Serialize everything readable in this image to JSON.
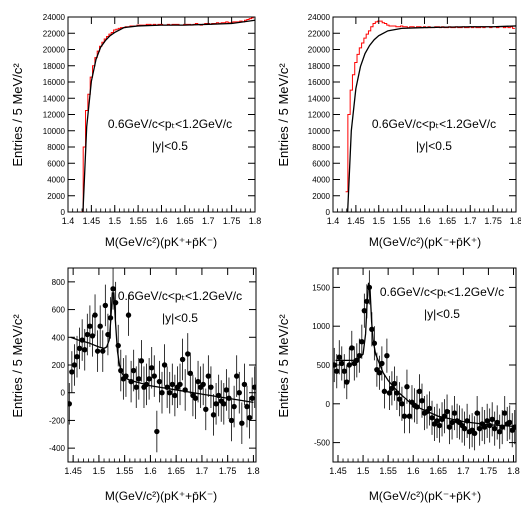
{
  "chart_data": [
    {
      "type": "line",
      "y_axis_label": "Entries / 5 MeV/c²",
      "x_axis_label": "M(GeV/c²)(pK⁺+p̄K⁻)",
      "annotation_line1": "0.6GeV/c<pₜ<1.2GeV/c",
      "annotation_line2": "|y|<0.5",
      "xlim": [
        1.4,
        1.8
      ],
      "ylim": [
        0,
        24000
      ],
      "x_ticks": [
        "1.4",
        "1.45",
        "1.5",
        "1.55",
        "1.6",
        "1.65",
        "1.7",
        "1.75",
        "1.8"
      ],
      "y_ticks": [
        "0",
        "2000",
        "4000",
        "6000",
        "8000",
        "10000",
        "12000",
        "14000",
        "16000",
        "18000",
        "20000",
        "22000",
        "24000"
      ],
      "series": [
        {
          "style": "histogram",
          "color": "#ff0000",
          "x": [
            1.43,
            1.435,
            1.44,
            1.445,
            1.45,
            1.455,
            1.46,
            1.465,
            1.47,
            1.475,
            1.48,
            1.485,
            1.49,
            1.495,
            1.5,
            1.505,
            1.51,
            1.515,
            1.52,
            1.525,
            1.53,
            1.535,
            1.54,
            1.545,
            1.55,
            1.555,
            1.56,
            1.565,
            1.57,
            1.575,
            1.58,
            1.585,
            1.59,
            1.595,
            1.6,
            1.605,
            1.61,
            1.615,
            1.62,
            1.625,
            1.63,
            1.635,
            1.64,
            1.645,
            1.65,
            1.655,
            1.66,
            1.665,
            1.67,
            1.675,
            1.68,
            1.685,
            1.69,
            1.695,
            1.7,
            1.705,
            1.71,
            1.715,
            1.72,
            1.725,
            1.73,
            1.735,
            1.74,
            1.745,
            1.75,
            1.755,
            1.76,
            1.765,
            1.77,
            1.775,
            1.78,
            1.785,
            1.79,
            1.795
          ],
          "y": [
            0,
            8000,
            12500,
            14500,
            16600,
            18000,
            19000,
            19800,
            20400,
            20900,
            21300,
            21600,
            21900,
            22100,
            22400,
            22500,
            22600,
            22700,
            22700,
            22800,
            22800,
            22900,
            22900,
            22900,
            23000,
            23000,
            23000,
            23000,
            23100,
            23100,
            23000,
            23100,
            23000,
            23100,
            23100,
            23000,
            23000,
            23100,
            23000,
            23100,
            23100,
            23100,
            23000,
            23000,
            23100,
            23100,
            23100,
            23000,
            23100,
            23200,
            23100,
            23000,
            23100,
            23200,
            23200,
            23100,
            23200,
            23200,
            23300,
            23200,
            23300,
            23300,
            23400,
            23300,
            23300,
            23400,
            23400,
            23400,
            23500,
            23400,
            23600,
            23700,
            23800,
            23900
          ]
        },
        {
          "style": "curve",
          "color": "#000000",
          "x": [
            1.432,
            1.44,
            1.45,
            1.46,
            1.47,
            1.48,
            1.49,
            1.5,
            1.52,
            1.55,
            1.6,
            1.65,
            1.7,
            1.75,
            1.8
          ],
          "y": [
            0,
            10500,
            16100,
            18800,
            20300,
            21100,
            21700,
            22100,
            22700,
            22900,
            23000,
            23000,
            23100,
            23200,
            23600
          ]
        }
      ]
    },
    {
      "type": "line",
      "y_axis_label": "Entries / 5 MeV/c²",
      "x_axis_label": "M(GeV/c²)(pK⁻+p̄K⁺)",
      "annotation_line1": "0.6GeV/c<pₜ<1.2GeV/c",
      "annotation_line2": "|y|<0.5",
      "xlim": [
        1.4,
        1.8
      ],
      "ylim": [
        0,
        24000
      ],
      "x_ticks": [
        "1.4",
        "1.45",
        "1.5",
        "1.55",
        "1.6",
        "1.65",
        "1.7",
        "1.75",
        "1.8"
      ],
      "y_ticks": [
        "0",
        "2000",
        "4000",
        "6000",
        "8000",
        "10000",
        "12000",
        "14000",
        "16000",
        "18000",
        "20000",
        "22000",
        "24000"
      ],
      "series": [
        {
          "style": "histogram",
          "color": "#ff0000",
          "x": [
            1.43,
            1.435,
            1.44,
            1.445,
            1.45,
            1.455,
            1.46,
            1.465,
            1.47,
            1.475,
            1.48,
            1.485,
            1.49,
            1.495,
            1.5,
            1.505,
            1.51,
            1.515,
            1.52,
            1.525,
            1.53,
            1.535,
            1.54,
            1.545,
            1.55,
            1.555,
            1.56,
            1.565,
            1.57,
            1.575,
            1.58,
            1.585,
            1.59,
            1.595,
            1.6,
            1.605,
            1.61,
            1.615,
            1.62,
            1.625,
            1.63,
            1.635,
            1.64,
            1.645,
            1.65,
            1.655,
            1.66,
            1.665,
            1.67,
            1.675,
            1.68,
            1.685,
            1.69,
            1.695,
            1.7,
            1.705,
            1.71,
            1.715,
            1.72,
            1.725,
            1.73,
            1.735,
            1.74,
            1.745,
            1.75,
            1.755,
            1.76,
            1.765,
            1.77,
            1.775,
            1.78,
            1.785,
            1.79,
            1.795
          ],
          "y": [
            2500,
            12000,
            15000,
            16900,
            18400,
            19400,
            20200,
            20800,
            21400,
            21900,
            22300,
            22800,
            23200,
            23400,
            23500,
            23500,
            23300,
            23200,
            23000,
            22900,
            22900,
            22900,
            22800,
            22800,
            22900,
            22800,
            22800,
            22700,
            22800,
            22800,
            22700,
            22800,
            22800,
            22700,
            22800,
            22700,
            22800,
            22700,
            22700,
            22800,
            22800,
            22700,
            22800,
            22700,
            22700,
            22800,
            22700,
            22700,
            22800,
            22700,
            22700,
            22800,
            22700,
            22700,
            22800,
            22700,
            22800,
            22700,
            22700,
            22800,
            22700,
            22800,
            22800,
            22700,
            22800,
            22800,
            22700,
            22800,
            22800,
            22700,
            22800,
            22700,
            22800,
            22600
          ]
        },
        {
          "style": "curve",
          "color": "#000000",
          "x": [
            1.432,
            1.44,
            1.45,
            1.46,
            1.47,
            1.48,
            1.49,
            1.5,
            1.52,
            1.55,
            1.6,
            1.65,
            1.7,
            1.75,
            1.8
          ],
          "y": [
            0,
            10000,
            15200,
            17900,
            19500,
            20500,
            21200,
            21700,
            22300,
            22600,
            22700,
            22750,
            22800,
            22800,
            22900
          ]
        }
      ]
    },
    {
      "type": "scatter",
      "y_axis_label": "Entries / 5 MeV/c²",
      "x_axis_label": "M(GeV/c²)(pK⁺+p̄K⁻)",
      "annotation_line1": "0.6GeV/c<pₜ<1.2GeV/c",
      "annotation_line2": "|y|<0.5",
      "xlim": [
        1.44,
        1.805
      ],
      "ylim": [
        -500,
        900
      ],
      "x_ticks": [
        "1.45",
        "1.5",
        "1.55",
        "1.6",
        "1.65",
        "1.7",
        "1.75",
        "1.8"
      ],
      "y_ticks": [
        "-400",
        "-200",
        "0",
        "200",
        "400",
        "600",
        "800"
      ],
      "series": [
        {
          "style": "points",
          "color": "#000000",
          "x": [
            1.4425,
            1.4475,
            1.4525,
            1.4575,
            1.4625,
            1.4675,
            1.4725,
            1.4775,
            1.4825,
            1.4875,
            1.4925,
            1.4975,
            1.5025,
            1.5075,
            1.5125,
            1.5175,
            1.5225,
            1.5275,
            1.5325,
            1.5375,
            1.5425,
            1.5475,
            1.5525,
            1.5575,
            1.5625,
            1.5675,
            1.5725,
            1.5775,
            1.5825,
            1.5875,
            1.5925,
            1.5975,
            1.6025,
            1.6075,
            1.6125,
            1.6175,
            1.6225,
            1.6275,
            1.6325,
            1.6375,
            1.6425,
            1.6475,
            1.6525,
            1.6575,
            1.6625,
            1.6675,
            1.6725,
            1.6775,
            1.6825,
            1.6875,
            1.6925,
            1.6975,
            1.7025,
            1.7075,
            1.7125,
            1.7175,
            1.7225,
            1.7275,
            1.7325,
            1.7375,
            1.7425,
            1.7475,
            1.7525,
            1.7575,
            1.7625,
            1.7675,
            1.7725,
            1.7775,
            1.7825,
            1.7875,
            1.7925,
            1.7975,
            1.8025
          ],
          "y": [
            -80,
            150,
            200,
            260,
            320,
            380,
            310,
            420,
            480,
            410,
            560,
            300,
            480,
            300,
            630,
            420,
            540,
            750,
            650,
            340,
            160,
            100,
            120,
            560,
            80,
            160,
            40,
            100,
            230,
            40,
            60,
            100,
            180,
            120,
            -280,
            80,
            0,
            200,
            40,
            0,
            60,
            -20,
            40,
            60,
            240,
            20,
            280,
            140,
            -20,
            -40,
            80,
            40,
            60,
            -120,
            120,
            40,
            -160,
            -80,
            -20,
            -60,
            -80,
            20,
            -40,
            -200,
            -100,
            120,
            0,
            -220,
            60,
            -100,
            -180,
            -40,
            40
          ],
          "error": [
            150,
            150,
            150,
            150,
            150,
            150,
            150,
            150,
            150,
            150,
            150,
            150,
            150,
            150,
            150,
            150,
            150,
            150,
            150,
            150,
            150,
            150,
            150,
            150,
            150,
            150,
            150,
            150,
            150,
            150,
            150,
            150,
            150,
            150,
            150,
            150,
            150,
            150,
            150,
            150,
            150,
            150,
            150,
            150,
            150,
            150,
            150,
            150,
            150,
            150,
            150,
            150,
            150,
            150,
            150,
            150,
            150,
            150,
            150,
            150,
            150,
            150,
            150,
            150,
            150,
            150,
            150,
            150,
            150,
            150,
            150,
            150,
            150
          ]
        },
        {
          "style": "curve",
          "color": "#000000",
          "x": [
            1.445,
            1.46,
            1.48,
            1.5,
            1.51,
            1.515,
            1.52,
            1.523,
            1.526,
            1.529,
            1.532,
            1.536,
            1.54,
            1.545,
            1.55,
            1.56,
            1.58,
            1.6,
            1.65,
            1.7,
            1.75,
            1.8
          ],
          "y": [
            400,
            380,
            360,
            330,
            320,
            330,
            380,
            520,
            720,
            720,
            520,
            300,
            200,
            140,
            110,
            90,
            70,
            50,
            20,
            -10,
            -40,
            -70
          ]
        }
      ]
    },
    {
      "type": "scatter",
      "y_axis_label": "Entries / 5 MeV/c²",
      "x_axis_label": "M(GeV/c²)(pK⁻+p̄K⁺)",
      "annotation_line1": "0.6GeV/c<pₜ<1.2GeV/c",
      "annotation_line2": "|y|<0.5",
      "xlim": [
        1.44,
        1.805
      ],
      "ylim": [
        -750,
        1750
      ],
      "x_ticks": [
        "1.45",
        "1.5",
        "1.55",
        "1.6",
        "1.65",
        "1.7",
        "1.75",
        "1.8"
      ],
      "y_ticks": [
        "-500",
        "0",
        "500",
        "1000",
        "1500"
      ],
      "series": [
        {
          "style": "points",
          "color": "#000000",
          "x": [
            1.4425,
            1.4475,
            1.4525,
            1.4575,
            1.4625,
            1.4675,
            1.4725,
            1.4775,
            1.4825,
            1.4875,
            1.4925,
            1.4975,
            1.5025,
            1.5075,
            1.5125,
            1.5175,
            1.5225,
            1.5275,
            1.5325,
            1.5375,
            1.5425,
            1.5475,
            1.5525,
            1.5575,
            1.5625,
            1.5675,
            1.5725,
            1.5775,
            1.5825,
            1.5875,
            1.5925,
            1.5975,
            1.6025,
            1.6075,
            1.6125,
            1.6175,
            1.6225,
            1.6275,
            1.6325,
            1.6375,
            1.6425,
            1.6475,
            1.6525,
            1.6575,
            1.6625,
            1.6675,
            1.6725,
            1.6775,
            1.6825,
            1.6875,
            1.6925,
            1.6975,
            1.7025,
            1.7075,
            1.7125,
            1.7175,
            1.7225,
            1.7275,
            1.7325,
            1.7375,
            1.7425,
            1.7475,
            1.7525,
            1.7575,
            1.7625,
            1.7675,
            1.7725,
            1.7775,
            1.7825,
            1.7875,
            1.7925,
            1.7975,
            1.8025
          ],
          "y": [
            500,
            420,
            600,
            520,
            420,
            280,
            500,
            720,
            520,
            560,
            620,
            800,
            1200,
            1320,
            1500,
            960,
            780,
            440,
            400,
            520,
            160,
            620,
            140,
            200,
            260,
            140,
            60,
            0,
            -160,
            220,
            -160,
            20,
            -20,
            -40,
            160,
            40,
            -120,
            -100,
            -60,
            -180,
            -260,
            -220,
            -280,
            -200,
            -160,
            -100,
            -300,
            -240,
            -120,
            -220,
            -240,
            -280,
            -320,
            -220,
            -360,
            -340,
            -380,
            -120,
            -320,
            -260,
            -300,
            -220,
            -280,
            -200,
            -320,
            -240,
            -360,
            -300,
            -120,
            -260,
            -240,
            -340,
            -300
          ],
          "error": [
            220,
            220,
            220,
            220,
            220,
            220,
            220,
            220,
            220,
            220,
            220,
            220,
            220,
            220,
            220,
            220,
            220,
            220,
            220,
            220,
            220,
            220,
            220,
            220,
            220,
            220,
            220,
            220,
            220,
            220,
            220,
            220,
            220,
            220,
            220,
            220,
            220,
            220,
            220,
            220,
            220,
            220,
            220,
            220,
            220,
            220,
            220,
            220,
            220,
            220,
            220,
            220,
            220,
            220,
            220,
            220,
            220,
            220,
            220,
            220,
            220,
            220,
            220,
            220,
            220,
            220,
            220,
            220,
            220,
            220,
            220,
            220,
            220
          ]
        },
        {
          "style": "curve",
          "color": "#000000",
          "x": [
            1.445,
            1.46,
            1.48,
            1.49,
            1.5,
            1.505,
            1.508,
            1.511,
            1.514,
            1.517,
            1.52,
            1.525,
            1.53,
            1.54,
            1.55,
            1.57,
            1.6,
            1.65,
            1.7,
            1.75,
            1.8
          ],
          "y": [
            560,
            560,
            560,
            580,
            640,
            900,
            1300,
            1560,
            1460,
            1060,
            820,
            640,
            560,
            400,
            300,
            150,
            -20,
            -160,
            -230,
            -270,
            -290
          ]
        }
      ]
    }
  ]
}
